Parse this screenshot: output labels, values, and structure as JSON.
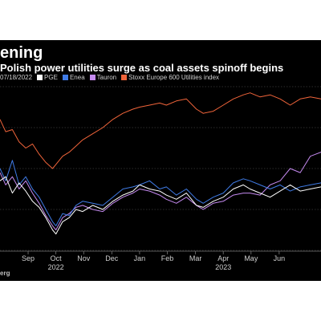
{
  "header": {
    "title": "ening",
    "subtitle": "Polish power utilities surge as coal assets spinoff begins",
    "legend_prefix": "07/18/2022"
  },
  "footer": {
    "source": "erg"
  },
  "colors": {
    "background": "#000000",
    "PGE": "#ffffff",
    "Enea": "#3f7be6",
    "Tauron": "#c58af0",
    "Stoxx": "#f0643a"
  },
  "chart_data": {
    "type": "line",
    "title": "ening",
    "subtitle": "Polish power utilities surge as coal assets spinoff begins",
    "x_ticks": [
      "Sep",
      "Oct",
      "Nov",
      "Dec",
      "Jan",
      "Feb",
      "Mar",
      "Apr",
      "May",
      "Jun"
    ],
    "x_tick_positions": [
      2022.667,
      2022.75,
      2022.833,
      2022.917,
      2023.0,
      2023.083,
      2023.167,
      2023.25,
      2023.333,
      2023.417
    ],
    "year_labels": [
      {
        "label": "2022",
        "at": 2022.75
      },
      {
        "label": "2023",
        "at": 2023.25
      }
    ],
    "xlim": [
      2022.583,
      2023.542
    ],
    "ylim": [
      50,
      130
    ],
    "grid": true,
    "legend_position": "top-left",
    "series": [
      {
        "name": "PGE",
        "x": [
          2022.583,
          2022.6,
          2022.62,
          2022.64,
          2022.66,
          2022.68,
          2022.7,
          2022.72,
          2022.74,
          2022.75,
          2022.77,
          2022.79,
          2022.81,
          2022.83,
          2022.86,
          2022.89,
          2022.92,
          2022.95,
          2022.98,
          2023.0,
          2023.03,
          2023.06,
          2023.08,
          2023.11,
          2023.14,
          2023.17,
          2023.19,
          2023.22,
          2023.25,
          2023.28,
          2023.31,
          2023.33,
          2023.36,
          2023.39,
          2023.42,
          2023.45,
          2023.48,
          2023.51,
          2023.542
        ],
        "y": [
          84,
          86,
          78,
          83,
          79,
          74,
          71,
          66,
          60,
          58,
          64,
          66,
          70,
          69,
          72,
          70,
          74,
          77,
          79,
          82,
          80,
          79,
          77,
          75,
          78,
          72,
          71,
          74,
          76,
          80,
          82,
          80,
          78,
          76,
          79,
          82,
          79,
          80,
          81
        ]
      },
      {
        "name": "Enea",
        "x": [
          2022.583,
          2022.6,
          2022.62,
          2022.64,
          2022.66,
          2022.68,
          2022.7,
          2022.72,
          2022.74,
          2022.75,
          2022.77,
          2022.79,
          2022.81,
          2022.83,
          2022.86,
          2022.89,
          2022.92,
          2022.95,
          2022.98,
          2023.0,
          2023.03,
          2023.06,
          2023.08,
          2023.11,
          2023.14,
          2023.17,
          2023.19,
          2023.22,
          2023.25,
          2023.28,
          2023.31,
          2023.33,
          2023.36,
          2023.39,
          2023.42,
          2023.45,
          2023.48,
          2023.51,
          2023.542
        ],
        "y": [
          90,
          84,
          94,
          82,
          86,
          80,
          76,
          70,
          64,
          62,
          68,
          67,
          72,
          74,
          73,
          72,
          76,
          80,
          81,
          82,
          84,
          80,
          81,
          77,
          80,
          75,
          73,
          76,
          78,
          83,
          85,
          84,
          82,
          80,
          82,
          79,
          81,
          82,
          83
        ]
      },
      {
        "name": "Tauron",
        "x": [
          2022.583,
          2022.6,
          2022.62,
          2022.64,
          2022.66,
          2022.68,
          2022.7,
          2022.72,
          2022.74,
          2022.75,
          2022.77,
          2022.79,
          2022.81,
          2022.83,
          2022.86,
          2022.89,
          2022.92,
          2022.95,
          2022.98,
          2023.0,
          2023.03,
          2023.06,
          2023.08,
          2023.11,
          2023.14,
          2023.17,
          2023.19,
          2023.22,
          2023.25,
          2023.28,
          2023.31,
          2023.33,
          2023.36,
          2023.39,
          2023.42,
          2023.45,
          2023.48,
          2023.51,
          2023.542
        ],
        "y": [
          88,
          82,
          86,
          80,
          84,
          78,
          73,
          67,
          62,
          60,
          66,
          68,
          71,
          72,
          70,
          69,
          73,
          76,
          78,
          80,
          79,
          77,
          75,
          73,
          76,
          72,
          70,
          73,
          74,
          77,
          78,
          78,
          77,
          82,
          84,
          90,
          88,
          96,
          98
        ]
      },
      {
        "name": "Stoxx Europe 600 Utilities index",
        "x": [
          2022.583,
          2022.6,
          2022.62,
          2022.64,
          2022.66,
          2022.68,
          2022.7,
          2022.72,
          2022.74,
          2022.75,
          2022.77,
          2022.79,
          2022.81,
          2022.83,
          2022.86,
          2022.89,
          2022.92,
          2022.95,
          2022.98,
          2023.0,
          2023.03,
          2023.06,
          2023.08,
          2023.11,
          2023.14,
          2023.17,
          2023.19,
          2023.22,
          2023.25,
          2023.28,
          2023.31,
          2023.33,
          2023.36,
          2023.39,
          2023.42,
          2023.45,
          2023.48,
          2023.51,
          2023.542
        ],
        "y": [
          114,
          108,
          109,
          103,
          100,
          102,
          97,
          93,
          90,
          92,
          96,
          98,
          101,
          104,
          107,
          110,
          114,
          117,
          119,
          120,
          121,
          122,
          121,
          123,
          124,
          119,
          117,
          118,
          121,
          124,
          126,
          127,
          125,
          126,
          124,
          121,
          124,
          125,
          124
        ]
      }
    ]
  }
}
